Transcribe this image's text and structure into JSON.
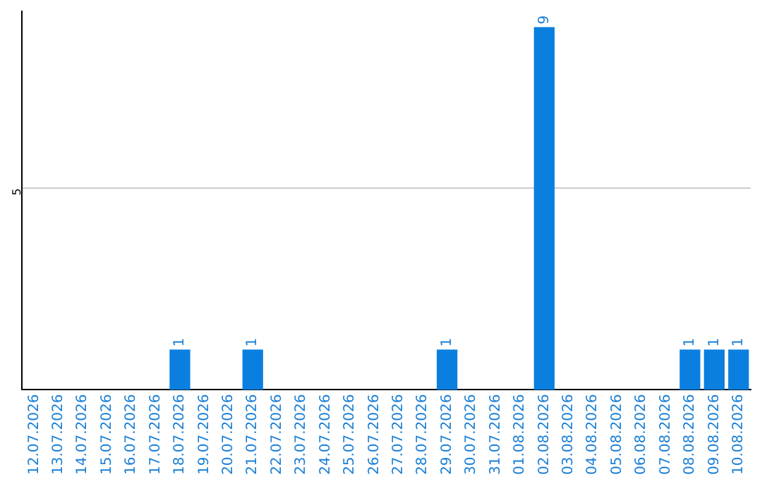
{
  "chart_data": {
    "type": "bar",
    "categories": [
      "12.07.2026",
      "13.07.2026",
      "14.07.2026",
      "15.07.2026",
      "16.07.2026",
      "17.07.2026",
      "18.07.2026",
      "19.07.2026",
      "20.07.2026",
      "21.07.2026",
      "22.07.2026",
      "23.07.2026",
      "24.07.2026",
      "25.07.2026",
      "26.07.2026",
      "27.07.2026",
      "28.07.2026",
      "29.07.2026",
      "30.07.2026",
      "31.07.2026",
      "01.08.2026",
      "02.08.2026",
      "03.08.2026",
      "04.08.2026",
      "05.08.2026",
      "06.08.2026",
      "07.08.2026",
      "08.08.2026",
      "09.08.2026",
      "10.08.2026"
    ],
    "values": [
      0,
      0,
      0,
      0,
      0,
      0,
      1,
      0,
      0,
      1,
      0,
      0,
      0,
      0,
      0,
      0,
      0,
      1,
      0,
      0,
      0,
      9,
      0,
      0,
      0,
      0,
      0,
      1,
      1,
      1
    ],
    "value_labels": [
      null,
      null,
      null,
      null,
      null,
      null,
      "1",
      null,
      null,
      "1",
      null,
      null,
      null,
      null,
      null,
      null,
      null,
      "1",
      null,
      null,
      null,
      "9",
      null,
      null,
      null,
      null,
      null,
      "1",
      "1",
      "1"
    ],
    "color": "#0a7fe0",
    "ylim": [
      0,
      9.4
    ],
    "yticks": [
      5
    ],
    "grid": "y",
    "legend": false
  }
}
